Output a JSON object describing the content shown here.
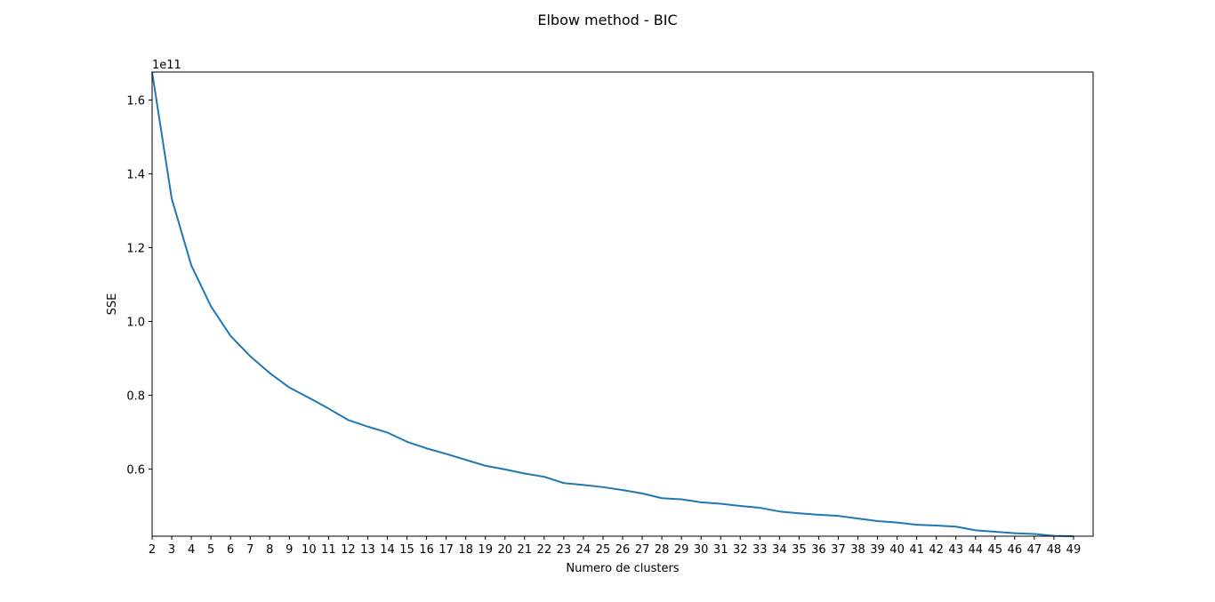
{
  "chart_data": {
    "type": "line",
    "title": "Elbow method - BIC",
    "xlabel": "Numero de clusters",
    "ylabel": "SSE",
    "y_offset_label": "1e11",
    "y_scale": 100000000000,
    "xlim": [
      2,
      50
    ],
    "ylim": [
      0.418,
      1.676
    ],
    "grid": false,
    "line_color": "#1f77b4",
    "x_ticks": [
      2,
      3,
      4,
      5,
      6,
      7,
      8,
      9,
      10,
      11,
      12,
      13,
      14,
      15,
      16,
      17,
      18,
      19,
      20,
      21,
      22,
      23,
      24,
      25,
      26,
      27,
      28,
      29,
      30,
      31,
      32,
      33,
      34,
      35,
      36,
      37,
      38,
      39,
      40,
      41,
      42,
      43,
      44,
      45,
      46,
      47,
      48,
      49
    ],
    "y_ticks": [
      0.6,
      0.8,
      1.0,
      1.2,
      1.4,
      1.6
    ],
    "y_tick_labels": [
      "0.6",
      "0.8",
      "1.0",
      "1.2",
      "1.4",
      "1.6"
    ],
    "series": [
      {
        "x": [
          2,
          3,
          4,
          5,
          6,
          7,
          8,
          9,
          10,
          11,
          12,
          13,
          14,
          15,
          16,
          17,
          18,
          19,
          20,
          21,
          22,
          23,
          24,
          25,
          26,
          27,
          28,
          29,
          30,
          31,
          32,
          33,
          34,
          35,
          36,
          37,
          38,
          39,
          40,
          41,
          42,
          43,
          44,
          45,
          46,
          47,
          48,
          49
        ],
        "values": [
          1.676,
          1.333,
          1.152,
          1.041,
          0.961,
          0.906,
          0.86,
          0.821,
          0.793,
          0.764,
          0.733,
          0.715,
          0.699,
          0.674,
          0.656,
          0.641,
          0.625,
          0.609,
          0.599,
          0.588,
          0.579,
          0.562,
          0.557,
          0.551,
          0.543,
          0.534,
          0.521,
          0.518,
          0.51,
          0.506,
          0.5,
          0.495,
          0.485,
          0.48,
          0.476,
          0.473,
          0.466,
          0.459,
          0.455,
          0.449,
          0.447,
          0.444,
          0.434,
          0.43,
          0.426,
          0.424,
          0.419,
          0.418
        ]
      }
    ]
  }
}
